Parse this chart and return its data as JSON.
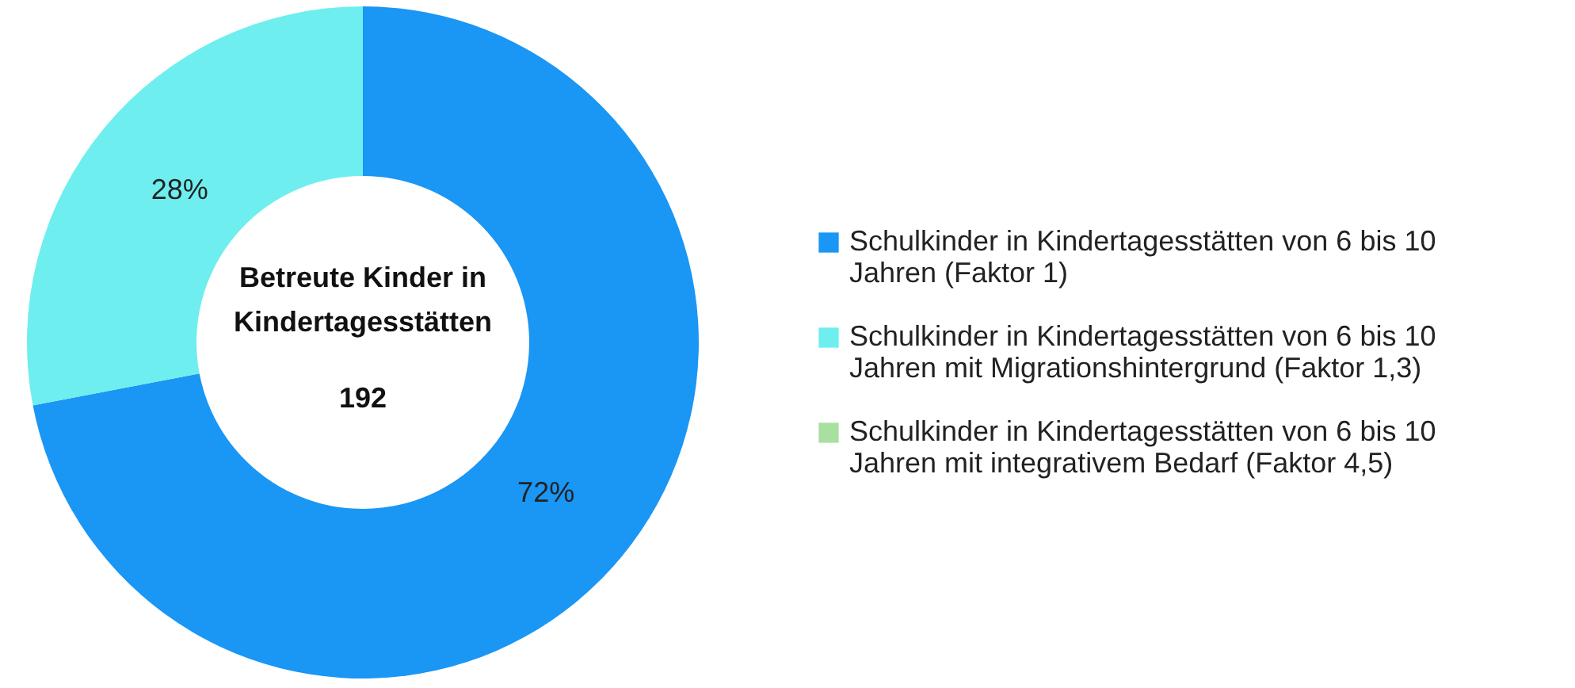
{
  "chart_data": {
    "type": "donut",
    "title": "Betreute Kinder in Kindertagesstätten",
    "annotations": [
      "192"
    ],
    "categories": [
      "Schulkinder in Kindertagesstätten von 6 bis 10 Jahren (Faktor 1)",
      "Schulkinder in Kindertagesstätten von 6 bis 10 Jahren mit Migrationshintergrund (Faktor 1,3)",
      "Schulkinder in Kindertagesstätten von 6 bis 10 Jahren mit integrativem Bedarf (Faktor 4,5)"
    ],
    "values": [
      72,
      28,
      0
    ],
    "colors": [
      "#1a96f5",
      "#6eeeee",
      "#a8e0a0"
    ],
    "value_labels": [
      "72%",
      "28%",
      null
    ],
    "legend": "right"
  }
}
